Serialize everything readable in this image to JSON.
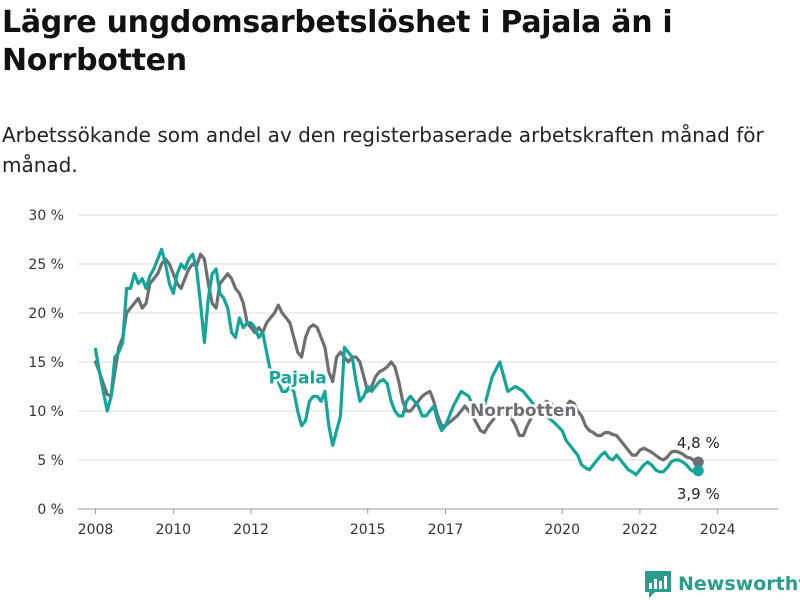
{
  "title": "Lägre ungdomsarbetslöshet i Pajala än i Norrbotten",
  "subtitle": "Arbetssökande som andel av den registerbaserade arbetskraften månad för månad.",
  "logo": {
    "text": "Newsworthy",
    "icon": "newsworthy-chart-icon",
    "color": "#2a9d8f"
  },
  "chart_data": {
    "type": "line",
    "ylim": [
      0,
      30
    ],
    "yticks": [
      0,
      5,
      10,
      15,
      20,
      25,
      30
    ],
    "ytick_labels": [
      "0 %",
      "5 %",
      "10 %",
      "15 %",
      "20 %",
      "25 %",
      "30 %"
    ],
    "xticks": [
      2008,
      2010,
      2012,
      2015,
      2017,
      2020,
      2022,
      2024
    ],
    "xtick_labels": [
      "2008",
      "2010",
      "2012",
      "2015",
      "2017",
      "2020",
      "2022",
      "2024"
    ],
    "grid": "horizontal",
    "series": [
      {
        "name": "Norrbotten",
        "color": "#6e6e73",
        "end_label": "4,8 %",
        "points": [
          [
            2008.0,
            15.0
          ],
          [
            2008.1,
            14.0
          ],
          [
            2008.2,
            12.8
          ],
          [
            2008.3,
            11.7
          ],
          [
            2008.4,
            11.5
          ],
          [
            2008.5,
            14.0
          ],
          [
            2008.6,
            16.5
          ],
          [
            2008.7,
            17.5
          ],
          [
            2008.8,
            20.0
          ],
          [
            2008.9,
            20.5
          ],
          [
            2009.0,
            21.0
          ],
          [
            2009.1,
            21.5
          ],
          [
            2009.2,
            20.5
          ],
          [
            2009.3,
            21.0
          ],
          [
            2009.4,
            23.0
          ],
          [
            2009.5,
            23.5
          ],
          [
            2009.6,
            24.0
          ],
          [
            2009.7,
            25.0
          ],
          [
            2009.8,
            25.5
          ],
          [
            2009.9,
            25.0
          ],
          [
            2010.0,
            24.0
          ],
          [
            2010.1,
            23.0
          ],
          [
            2010.2,
            22.5
          ],
          [
            2010.3,
            23.5
          ],
          [
            2010.4,
            24.5
          ],
          [
            2010.5,
            25.0
          ],
          [
            2010.6,
            24.8
          ],
          [
            2010.7,
            26.0
          ],
          [
            2010.8,
            25.5
          ],
          [
            2010.9,
            23.0
          ],
          [
            2011.0,
            21.0
          ],
          [
            2011.1,
            20.5
          ],
          [
            2011.2,
            23.0
          ],
          [
            2011.3,
            23.5
          ],
          [
            2011.4,
            24.0
          ],
          [
            2011.5,
            23.5
          ],
          [
            2011.6,
            22.5
          ],
          [
            2011.7,
            22.0
          ],
          [
            2011.8,
            21.0
          ],
          [
            2011.9,
            19.0
          ],
          [
            2012.0,
            18.5
          ],
          [
            2012.1,
            18.0
          ],
          [
            2012.2,
            18.5
          ],
          [
            2012.3,
            18.0
          ],
          [
            2012.4,
            19.0
          ],
          [
            2012.5,
            19.5
          ],
          [
            2012.6,
            20.0
          ],
          [
            2012.7,
            20.8
          ],
          [
            2012.8,
            20.0
          ],
          [
            2012.9,
            19.5
          ],
          [
            2013.0,
            19.0
          ],
          [
            2013.1,
            17.5
          ],
          [
            2013.2,
            16.0
          ],
          [
            2013.3,
            15.5
          ],
          [
            2013.4,
            17.5
          ],
          [
            2013.5,
            18.5
          ],
          [
            2013.6,
            18.8
          ],
          [
            2013.7,
            18.5
          ],
          [
            2013.8,
            17.5
          ],
          [
            2013.9,
            16.5
          ],
          [
            2014.0,
            14.0
          ],
          [
            2014.1,
            13.0
          ],
          [
            2014.2,
            15.5
          ],
          [
            2014.3,
            16.0
          ],
          [
            2014.4,
            15.5
          ],
          [
            2014.5,
            15.0
          ],
          [
            2014.6,
            15.5
          ],
          [
            2014.7,
            15.5
          ],
          [
            2014.8,
            15.0
          ],
          [
            2014.9,
            13.5
          ],
          [
            2015.0,
            12.0
          ],
          [
            2015.1,
            12.5
          ],
          [
            2015.2,
            13.5
          ],
          [
            2015.3,
            14.0
          ],
          [
            2015.4,
            14.2
          ],
          [
            2015.5,
            14.5
          ],
          [
            2015.6,
            15.0
          ],
          [
            2015.7,
            14.5
          ],
          [
            2015.8,
            13.0
          ],
          [
            2015.9,
            11.0
          ],
          [
            2016.0,
            10.0
          ],
          [
            2016.1,
            10.0
          ],
          [
            2016.2,
            10.5
          ],
          [
            2016.3,
            11.0
          ],
          [
            2016.4,
            11.5
          ],
          [
            2016.5,
            11.8
          ],
          [
            2016.6,
            12.0
          ],
          [
            2016.7,
            11.0
          ],
          [
            2016.8,
            9.5
          ],
          [
            2016.9,
            8.5
          ],
          [
            2017.0,
            8.5
          ],
          [
            2017.3,
            9.5
          ],
          [
            2017.5,
            10.5
          ],
          [
            2017.7,
            9.5
          ],
          [
            2017.9,
            8.0
          ],
          [
            2018.0,
            7.8
          ],
          [
            2018.1,
            8.5
          ],
          [
            2018.3,
            9.5
          ],
          [
            2018.6,
            10.0
          ],
          [
            2018.8,
            8.5
          ],
          [
            2018.9,
            7.5
          ],
          [
            2019.0,
            7.5
          ],
          [
            2019.1,
            8.5
          ],
          [
            2019.3,
            10.0
          ],
          [
            2019.6,
            11.0
          ],
          [
            2019.8,
            10.5
          ],
          [
            2020.0,
            10.0
          ],
          [
            2020.1,
            10.5
          ],
          [
            2020.2,
            11.0
          ],
          [
            2020.3,
            10.8
          ],
          [
            2020.4,
            10.0
          ],
          [
            2020.5,
            9.5
          ],
          [
            2020.6,
            8.5
          ],
          [
            2020.7,
            8.0
          ],
          [
            2020.8,
            7.8
          ],
          [
            2020.9,
            7.5
          ],
          [
            2021.0,
            7.5
          ],
          [
            2021.1,
            7.8
          ],
          [
            2021.2,
            7.8
          ],
          [
            2021.3,
            7.6
          ],
          [
            2021.4,
            7.5
          ],
          [
            2021.5,
            7.0
          ],
          [
            2021.6,
            6.5
          ],
          [
            2021.7,
            6.0
          ],
          [
            2021.8,
            5.5
          ],
          [
            2021.9,
            5.5
          ],
          [
            2022.0,
            6.0
          ],
          [
            2022.1,
            6.2
          ],
          [
            2022.2,
            6.0
          ],
          [
            2022.3,
            5.8
          ],
          [
            2022.4,
            5.5
          ],
          [
            2022.5,
            5.2
          ],
          [
            2022.6,
            5.0
          ],
          [
            2022.7,
            5.3
          ],
          [
            2022.8,
            5.8
          ],
          [
            2022.9,
            5.9
          ],
          [
            2023.0,
            5.8
          ],
          [
            2023.1,
            5.6
          ],
          [
            2023.2,
            5.3
          ],
          [
            2023.3,
            5.2
          ],
          [
            2023.4,
            4.9
          ],
          [
            2023.5,
            4.8
          ]
        ]
      },
      {
        "name": "Pajala",
        "color": "#14a59a",
        "end_label": "3,9 %",
        "points": [
          [
            2008.0,
            16.3
          ],
          [
            2008.1,
            14.0
          ],
          [
            2008.2,
            12.0
          ],
          [
            2008.3,
            10.0
          ],
          [
            2008.4,
            11.5
          ],
          [
            2008.5,
            15.5
          ],
          [
            2008.6,
            16.0
          ],
          [
            2008.7,
            17.0
          ],
          [
            2008.8,
            22.5
          ],
          [
            2008.9,
            22.5
          ],
          [
            2009.0,
            24.0
          ],
          [
            2009.1,
            23.0
          ],
          [
            2009.2,
            23.5
          ],
          [
            2009.3,
            22.5
          ],
          [
            2009.4,
            23.8
          ],
          [
            2009.5,
            24.5
          ],
          [
            2009.6,
            25.5
          ],
          [
            2009.7,
            26.5
          ],
          [
            2009.8,
            25.0
          ],
          [
            2009.9,
            23.0
          ],
          [
            2010.0,
            22.0
          ],
          [
            2010.1,
            24.0
          ],
          [
            2010.2,
            25.0
          ],
          [
            2010.3,
            24.5
          ],
          [
            2010.4,
            25.5
          ],
          [
            2010.5,
            26.0
          ],
          [
            2010.6,
            24.5
          ],
          [
            2010.7,
            21.0
          ],
          [
            2010.8,
            17.0
          ],
          [
            2010.9,
            21.5
          ],
          [
            2011.0,
            24.0
          ],
          [
            2011.1,
            24.5
          ],
          [
            2011.2,
            22.0
          ],
          [
            2011.3,
            21.5
          ],
          [
            2011.4,
            20.5
          ],
          [
            2011.5,
            18.0
          ],
          [
            2011.6,
            17.5
          ],
          [
            2011.7,
            19.5
          ],
          [
            2011.8,
            18.5
          ],
          [
            2011.9,
            19.0
          ],
          [
            2012.0,
            19.0
          ],
          [
            2012.1,
            18.5
          ],
          [
            2012.2,
            17.5
          ],
          [
            2012.3,
            18.0
          ],
          [
            2012.4,
            16.0
          ],
          [
            2012.5,
            14.0
          ],
          [
            2012.6,
            14.0
          ],
          [
            2012.7,
            13.0
          ],
          [
            2012.8,
            12.0
          ],
          [
            2012.9,
            12.0
          ],
          [
            2013.0,
            12.5
          ],
          [
            2013.1,
            12.0
          ],
          [
            2013.2,
            10.0
          ],
          [
            2013.3,
            8.5
          ],
          [
            2013.4,
            9.0
          ],
          [
            2013.5,
            11.0
          ],
          [
            2013.6,
            11.5
          ],
          [
            2013.7,
            11.5
          ],
          [
            2013.8,
            11.0
          ],
          [
            2013.9,
            12.0
          ],
          [
            2014.0,
            8.5
          ],
          [
            2014.1,
            6.5
          ],
          [
            2014.2,
            8.0
          ],
          [
            2014.3,
            9.5
          ],
          [
            2014.4,
            16.5
          ],
          [
            2014.5,
            16.0
          ],
          [
            2014.6,
            15.5
          ],
          [
            2014.7,
            13.0
          ],
          [
            2014.8,
            11.0
          ],
          [
            2014.9,
            11.5
          ],
          [
            2015.0,
            12.5
          ],
          [
            2015.1,
            12.0
          ],
          [
            2015.2,
            12.5
          ],
          [
            2015.3,
            13.0
          ],
          [
            2015.4,
            13.2
          ],
          [
            2015.5,
            12.8
          ],
          [
            2015.6,
            11.0
          ],
          [
            2015.7,
            10.0
          ],
          [
            2015.8,
            9.5
          ],
          [
            2015.9,
            9.5
          ],
          [
            2016.0,
            11.0
          ],
          [
            2016.1,
            11.5
          ],
          [
            2016.2,
            11.0
          ],
          [
            2016.3,
            10.5
          ],
          [
            2016.4,
            9.5
          ],
          [
            2016.5,
            9.5
          ],
          [
            2016.6,
            10.0
          ],
          [
            2016.7,
            10.5
          ],
          [
            2016.8,
            9.0
          ],
          [
            2016.9,
            8.0
          ],
          [
            2017.0,
            8.5
          ],
          [
            2017.2,
            10.5
          ],
          [
            2017.4,
            12.0
          ],
          [
            2017.6,
            11.5
          ],
          [
            2017.8,
            9.5
          ],
          [
            2018.0,
            10.5
          ],
          [
            2018.2,
            13.5
          ],
          [
            2018.4,
            15.0
          ],
          [
            2018.6,
            12.0
          ],
          [
            2018.8,
            12.5
          ],
          [
            2019.0,
            12.0
          ],
          [
            2019.2,
            11.0
          ],
          [
            2019.4,
            10.0
          ],
          [
            2019.6,
            9.5
          ],
          [
            2019.8,
            8.8
          ],
          [
            2020.0,
            8.0
          ],
          [
            2020.1,
            7.0
          ],
          [
            2020.2,
            6.5
          ],
          [
            2020.3,
            6.0
          ],
          [
            2020.4,
            5.5
          ],
          [
            2020.5,
            4.5
          ],
          [
            2020.6,
            4.2
          ],
          [
            2020.7,
            4.0
          ],
          [
            2020.8,
            4.5
          ],
          [
            2020.9,
            5.0
          ],
          [
            2021.0,
            5.5
          ],
          [
            2021.1,
            5.8
          ],
          [
            2021.2,
            5.2
          ],
          [
            2021.3,
            5.0
          ],
          [
            2021.4,
            5.5
          ],
          [
            2021.5,
            5.0
          ],
          [
            2021.6,
            4.5
          ],
          [
            2021.7,
            4.0
          ],
          [
            2021.8,
            3.8
          ],
          [
            2021.9,
            3.5
          ],
          [
            2022.0,
            4.0
          ],
          [
            2022.1,
            4.5
          ],
          [
            2022.2,
            4.8
          ],
          [
            2022.3,
            4.5
          ],
          [
            2022.4,
            4.0
          ],
          [
            2022.5,
            3.8
          ],
          [
            2022.6,
            3.8
          ],
          [
            2022.7,
            4.2
          ],
          [
            2022.8,
            4.8
          ],
          [
            2022.9,
            5.0
          ],
          [
            2023.0,
            5.0
          ],
          [
            2023.1,
            4.8
          ],
          [
            2023.2,
            4.5
          ],
          [
            2023.3,
            4.0
          ],
          [
            2023.4,
            3.8
          ],
          [
            2023.5,
            3.9
          ]
        ]
      }
    ]
  }
}
